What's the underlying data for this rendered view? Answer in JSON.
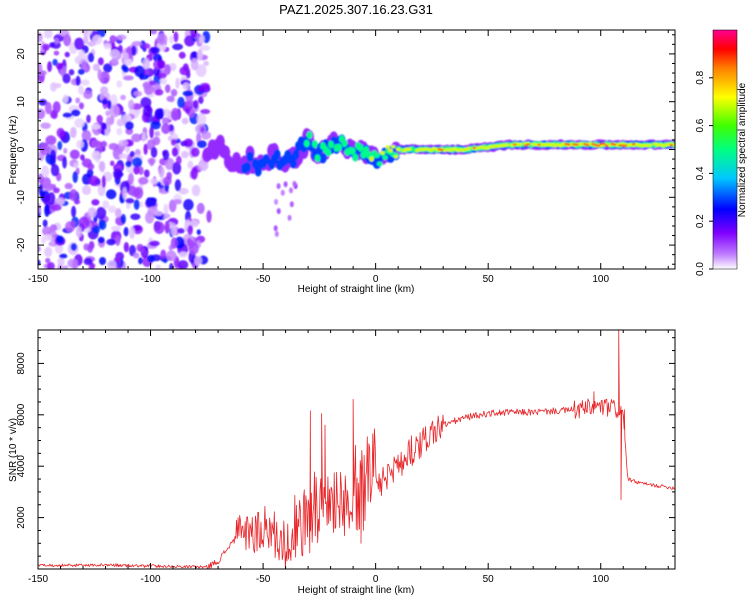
{
  "figure": {
    "title": "PAZ1.2025.307.16.23.G31"
  },
  "chart_data": [
    {
      "type": "heatmap",
      "name": "spectrogram",
      "xlabel": "Height of straight line (km)",
      "ylabel": "Frequency (Hz)",
      "xlim": [
        -150,
        133
      ],
      "ylim": [
        -25,
        25
      ],
      "x_ticks": [
        -150,
        -100,
        -50,
        0,
        50,
        100
      ],
      "x_tick_labels": [
        "-150",
        "-100",
        "-50",
        "0",
        "50",
        "100"
      ],
      "y_ticks": [
        -20,
        -10,
        0,
        10,
        20
      ],
      "y_tick_labels": [
        "-20",
        "-10",
        "0",
        "10",
        "20"
      ],
      "colorbar": {
        "label": "Normalized spectral amplitude",
        "range": [
          0,
          1
        ],
        "ticks": [
          0.0,
          0.2,
          0.4,
          0.6,
          0.8
        ],
        "tick_labels": [
          "0.0",
          "0.2",
          "0.4",
          "0.6",
          "0.8"
        ],
        "colors": [
          "#ffffff",
          "#9000ff",
          "#0000ff",
          "#00ffff",
          "#00ff00",
          "#ffff00",
          "#ff8000",
          "#ff0000",
          "#ff0080"
        ]
      },
      "noise_region_x": [
        -150,
        -75
      ],
      "signal_trace": {
        "x": [
          -75,
          -70,
          -65,
          -60,
          -55,
          -50,
          -45,
          -40,
          -35,
          -30,
          -25,
          -20,
          -15,
          -10,
          -5,
          0,
          5,
          10,
          20,
          40,
          60,
          80,
          100,
          120,
          133
        ],
        "freq": [
          -2,
          1,
          -2,
          -3,
          -2,
          -4,
          -1,
          -3,
          -1,
          2,
          -1,
          1,
          2,
          -1,
          0,
          -2,
          -1,
          0,
          0,
          0,
          1,
          1,
          1,
          1,
          1
        ],
        "amplitude": [
          0.15,
          0.2,
          0.2,
          0.25,
          0.3,
          0.3,
          0.3,
          0.35,
          0.4,
          0.45,
          0.5,
          0.5,
          0.6,
          0.6,
          0.6,
          0.65,
          0.7,
          0.75,
          0.8,
          0.8,
          0.8,
          0.85,
          0.9,
          0.85,
          0.8
        ]
      }
    },
    {
      "type": "line",
      "name": "snr",
      "xlabel": "Height of straight line (km)",
      "ylabel": "SNR (10 * v/v)",
      "xlim": [
        -150,
        133
      ],
      "ylim": [
        0,
        9300
      ],
      "x_ticks": [
        -150,
        -100,
        -50,
        0,
        50,
        100
      ],
      "x_tick_labels": [
        "-150",
        "-100",
        "-50",
        "0",
        "50",
        "100"
      ],
      "y_ticks": [
        2000,
        4000,
        6000,
        8000
      ],
      "y_tick_labels": [
        "2000",
        "4000",
        "6000",
        "8000"
      ],
      "color": "#e8262a",
      "x": [
        -150,
        -120,
        -90,
        -75,
        -70,
        -65,
        -60,
        -55,
        -50,
        -45,
        -40,
        -35,
        -30,
        -25,
        -20,
        -15,
        -10,
        -5,
        0,
        5,
        10,
        15,
        20,
        25,
        30,
        40,
        50,
        60,
        70,
        80,
        90,
        95,
        100,
        105,
        108,
        110,
        112,
        115,
        120,
        133
      ],
      "values": [
        150,
        150,
        100,
        80,
        300,
        900,
        1400,
        1300,
        1200,
        1300,
        1000,
        1400,
        1800,
        2200,
        2300,
        2300,
        2700,
        2900,
        3100,
        3400,
        4000,
        4300,
        4900,
        5300,
        5600,
        5900,
        6050,
        6100,
        6100,
        6150,
        6200,
        6250,
        6300,
        6250,
        6200,
        6000,
        3500,
        3400,
        3300,
        3150
      ]
    }
  ]
}
